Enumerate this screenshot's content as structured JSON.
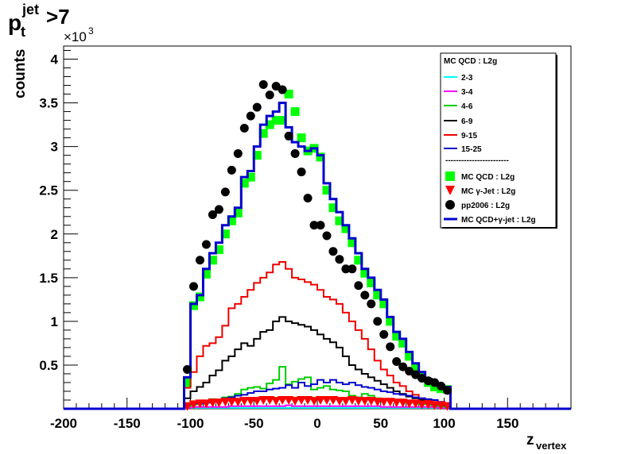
{
  "chart_data": {
    "type": "histogram",
    "title_main": "p",
    "title_sub": "t",
    "title_sup": "jet",
    "title_suffix": " >7",
    "ylabel": "counts",
    "xlabel_main": "z",
    "xlabel_sub": "vertex",
    "yexp_prefix": "×10",
    "yexp_power": "3",
    "xlim": [
      -200,
      200
    ],
    "ylim": [
      0,
      4.15
    ],
    "x_ticks": [
      -200,
      -150,
      -100,
      -50,
      0,
      50,
      100,
      150
    ],
    "x_tick_labels": [
      "-200",
      "-150",
      "-100",
      "-50",
      "0",
      "50",
      "100",
      "150"
    ],
    "y_ticks": [
      0.5,
      1,
      1.5,
      2,
      2.5,
      3,
      3.5,
      4
    ],
    "y_tick_labels": [
      "0.5",
      "1",
      "1.5",
      "2",
      "2.5",
      "3",
      "3.5",
      "4"
    ],
    "bin_width": 5,
    "bin_edges_start": -105,
    "colors": {
      "qcd_fill": "#00ff00",
      "gamma": "#ff0000",
      "data": "#000000",
      "sum": "#0000cc",
      "b23": "#00ffff",
      "b34": "#ff00ff",
      "b46": "#00cc00",
      "b69": "#000000",
      "b915": "#ee0000",
      "b1525": "#0000cc"
    },
    "series": [
      {
        "name": "2-3",
        "color_key": "b23",
        "style": "hist",
        "values": [
          0.01,
          0.01,
          0.01,
          0.01,
          0.01,
          0.01,
          0.01,
          0.01,
          0.01,
          0.01,
          0.01,
          0.01,
          0.01,
          0.01,
          0.01,
          0.01,
          0.01,
          0.01,
          0.01,
          0.01,
          0.01,
          0.01,
          0.01,
          0.01,
          0.01,
          0.01,
          0.01,
          0.01,
          0.01,
          0.01,
          0.01,
          0.01,
          0.01,
          0.01,
          0.01,
          0.01,
          0.01,
          0.01,
          0.01,
          0.01,
          0.01,
          0.01
        ]
      },
      {
        "name": "3-4",
        "color_key": "b34",
        "style": "hist",
        "values": [
          0.01,
          0.02,
          0.02,
          0.02,
          0.02,
          0.02,
          0.02,
          0.03,
          0.03,
          0.03,
          0.03,
          0.03,
          0.03,
          0.03,
          0.03,
          0.03,
          0.04,
          0.03,
          0.03,
          0.03,
          0.03,
          0.03,
          0.03,
          0.03,
          0.03,
          0.03,
          0.03,
          0.03,
          0.03,
          0.03,
          0.03,
          0.02,
          0.02,
          0.02,
          0.02,
          0.02,
          0.02,
          0.02,
          0.02,
          0.02,
          0.01,
          0.01
        ]
      },
      {
        "name": "4-6",
        "color_key": "b46",
        "style": "hist",
        "values": [
          0.03,
          0.05,
          0.06,
          0.08,
          0.11,
          0.1,
          0.13,
          0.14,
          0.17,
          0.22,
          0.24,
          0.25,
          0.23,
          0.29,
          0.33,
          0.48,
          0.28,
          0.31,
          0.34,
          0.36,
          0.22,
          0.24,
          0.26,
          0.22,
          0.21,
          0.2,
          0.15,
          0.13,
          0.17,
          0.15,
          0.12,
          0.11,
          0.11,
          0.1,
          0.09,
          0.07,
          0.07,
          0.05,
          0.05,
          0.04,
          0.03,
          0.02
        ]
      },
      {
        "name": "6-9",
        "color_key": "b69",
        "style": "hist",
        "values": [
          0.12,
          0.2,
          0.25,
          0.3,
          0.38,
          0.44,
          0.55,
          0.6,
          0.68,
          0.75,
          0.72,
          0.8,
          0.88,
          0.9,
          1.0,
          1.05,
          1.0,
          0.98,
          0.96,
          0.94,
          0.9,
          0.85,
          0.8,
          0.76,
          0.7,
          0.6,
          0.5,
          0.45,
          0.4,
          0.36,
          0.32,
          0.28,
          0.24,
          0.2,
          0.17,
          0.14,
          0.12,
          0.1,
          0.08,
          0.06,
          0.05,
          0.04
        ]
      },
      {
        "name": "9-15",
        "color_key": "b915",
        "style": "hist",
        "values": [
          0.24,
          0.42,
          0.6,
          0.72,
          0.75,
          0.82,
          0.95,
          1.15,
          1.2,
          1.28,
          1.36,
          1.44,
          1.5,
          1.56,
          1.65,
          1.68,
          1.6,
          1.5,
          1.48,
          1.45,
          1.42,
          1.36,
          1.28,
          1.25,
          1.2,
          1.1,
          1.0,
          0.9,
          0.8,
          0.68,
          0.55,
          0.45,
          0.38,
          0.3,
          0.26,
          0.2,
          0.16,
          0.12,
          0.1,
          0.08,
          0.06,
          0.05
        ]
      },
      {
        "name": "15-25",
        "color_key": "b1525",
        "style": "hist",
        "values": [
          0.05,
          0.06,
          0.06,
          0.07,
          0.08,
          0.1,
          0.12,
          0.13,
          0.15,
          0.16,
          0.18,
          0.2,
          0.2,
          0.22,
          0.23,
          0.24,
          0.27,
          0.24,
          0.3,
          0.26,
          0.28,
          0.33,
          0.3,
          0.33,
          0.3,
          0.28,
          0.3,
          0.27,
          0.25,
          0.24,
          0.22,
          0.2,
          0.19,
          0.17,
          0.16,
          0.15,
          0.13,
          0.12,
          0.11,
          0.1,
          0.08,
          0.06
        ]
      },
      {
        "name": "MC QCD : L2g",
        "color_key": "qcd_fill",
        "style": "square",
        "values": [
          0.3,
          1.18,
          1.28,
          1.54,
          1.7,
          1.82,
          2.0,
          2.15,
          2.24,
          2.58,
          2.65,
          2.9,
          3.15,
          3.25,
          3.3,
          3.3,
          3.6,
          3.4,
          3.1,
          2.95,
          2.98,
          2.88,
          2.5,
          2.3,
          2.15,
          2.06,
          1.9,
          1.7,
          1.55,
          1.44,
          1.3,
          1.2,
          1.0,
          0.83,
          0.75,
          0.6,
          0.48,
          0.38,
          0.3,
          0.25,
          0.23,
          0.22
        ]
      },
      {
        "name": "MC γ-Jet : L2g",
        "color_key": "gamma",
        "style": "triangle",
        "values": [
          0.03,
          0.05,
          0.06,
          0.06,
          0.07,
          0.07,
          0.08,
          0.08,
          0.08,
          0.09,
          0.09,
          0.09,
          0.1,
          0.1,
          0.09,
          0.1,
          0.1,
          0.09,
          0.1,
          0.1,
          0.09,
          0.1,
          0.1,
          0.1,
          0.09,
          0.09,
          0.1,
          0.09,
          0.09,
          0.09,
          0.08,
          0.08,
          0.08,
          0.07,
          0.07,
          0.06,
          0.06,
          0.05,
          0.05,
          0.04,
          0.04,
          0.03
        ]
      },
      {
        "name": "pp2006 : L2g",
        "color_key": "data",
        "style": "circle",
        "values": [
          0.45,
          1.4,
          1.7,
          1.88,
          2.22,
          2.28,
          2.48,
          2.73,
          2.92,
          3.21,
          3.35,
          3.45,
          3.71,
          3.59,
          3.69,
          3.65,
          3.12,
          2.92,
          2.71,
          2.41,
          2.1,
          2.1,
          1.98,
          1.8,
          1.71,
          1.6,
          1.6,
          1.41,
          1.3,
          1.2,
          1.0,
          0.85,
          0.71,
          0.54,
          0.48,
          0.43,
          0.39,
          0.35,
          0.32,
          0.3,
          0.26,
          0.21
        ]
      },
      {
        "name": "MC QCD+γ-jet : L2g",
        "color_key": "sum",
        "style": "hist_thick",
        "values": [
          0.36,
          1.2,
          1.3,
          1.6,
          1.78,
          1.9,
          2.1,
          2.2,
          2.3,
          2.65,
          2.72,
          3.0,
          3.25,
          3.35,
          3.4,
          3.5,
          3.22,
          3.05,
          3.0,
          2.95,
          2.98,
          2.9,
          2.58,
          2.4,
          2.25,
          2.1,
          1.95,
          1.78,
          1.6,
          1.5,
          1.36,
          1.25,
          1.05,
          0.88,
          0.8,
          0.65,
          0.52,
          0.42,
          0.34,
          0.29,
          0.27,
          0.25
        ]
      }
    ],
    "legend": {
      "header": "MC QCD : L2g",
      "separator": "------------------------",
      "entries": [
        {
          "label": "2-3",
          "color_key": "b23",
          "marker": "line"
        },
        {
          "label": "3-4",
          "color_key": "b34",
          "marker": "line"
        },
        {
          "label": "4-6",
          "color_key": "b46",
          "marker": "line"
        },
        {
          "label": "6-9",
          "color_key": "b69",
          "marker": "line"
        },
        {
          "label": "9-15",
          "color_key": "b915",
          "marker": "line"
        },
        {
          "label": "15-25",
          "color_key": "b1525",
          "marker": "line"
        },
        {
          "label": "MC QCD : L2g",
          "color_key": "qcd_fill",
          "marker": "square"
        },
        {
          "label": "MC γ-Jet : L2g",
          "color_key": "gamma",
          "marker": "triangle"
        },
        {
          "label": "pp2006 : L2g",
          "color_key": "data",
          "marker": "circle"
        },
        {
          "label": "MC QCD+γ-jet : L2g",
          "color_key": "sum",
          "marker": "thickline"
        }
      ]
    }
  }
}
